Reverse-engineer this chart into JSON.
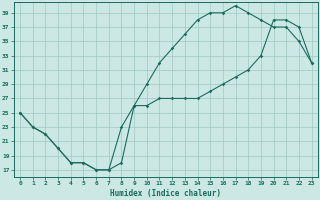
{
  "xlabel": "Humidex (Indice chaleur)",
  "bg_color": "#cce8e4",
  "grid_color": "#a0c8c2",
  "line_color": "#1a6b5e",
  "xlim": [
    -0.5,
    23.5
  ],
  "ylim": [
    16,
    40.5
  ],
  "xticks": [
    0,
    1,
    2,
    3,
    4,
    5,
    6,
    7,
    8,
    9,
    10,
    11,
    12,
    13,
    14,
    15,
    16,
    17,
    18,
    19,
    20,
    21,
    22,
    23
  ],
  "yticks": [
    17,
    19,
    21,
    23,
    25,
    27,
    29,
    31,
    33,
    35,
    37,
    39
  ],
  "line1_x": [
    0,
    1,
    2,
    3,
    4,
    5,
    6,
    7,
    8,
    9,
    10,
    11,
    12,
    13,
    14,
    15,
    16,
    17,
    18,
    19,
    20,
    21,
    22,
    23
  ],
  "line1_y": [
    25,
    23,
    22,
    20,
    18,
    18,
    17,
    17,
    18,
    26,
    29,
    32,
    34,
    36,
    38,
    39,
    39,
    40,
    39,
    38,
    37,
    37,
    35,
    32
  ],
  "line2_x": [
    0,
    1,
    2,
    3,
    4,
    5,
    6,
    7,
    8,
    9,
    10,
    11,
    12,
    13,
    14,
    15,
    16,
    17,
    18,
    19,
    20,
    21,
    22,
    23
  ],
  "line2_y": [
    25,
    23,
    22,
    20,
    18,
    18,
    17,
    17,
    23,
    26,
    26,
    27,
    27,
    27,
    27,
    28,
    29,
    30,
    31,
    33,
    38,
    38,
    37,
    32
  ]
}
